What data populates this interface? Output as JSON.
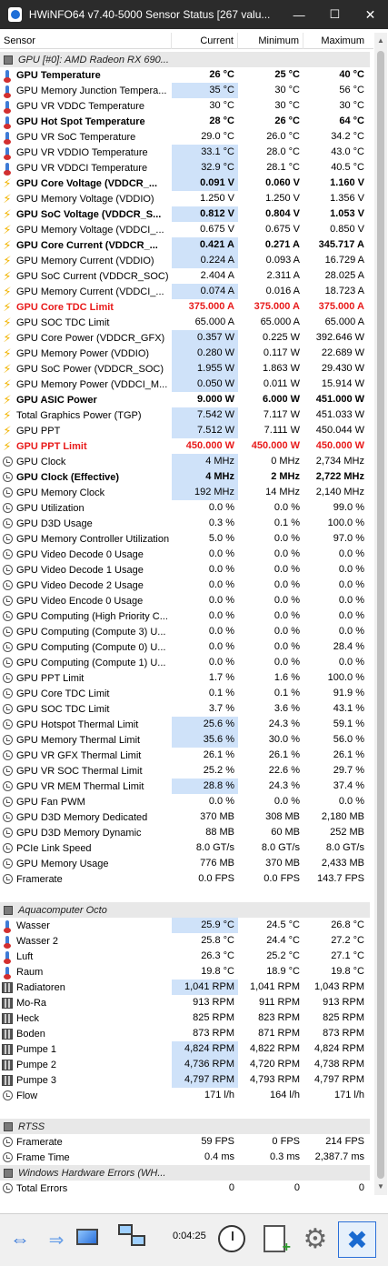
{
  "window": {
    "title": "HWiNFO64 v7.40-5000 Sensor Status [267 valu...",
    "minimize": "—",
    "maximize": "☐",
    "close": "✕"
  },
  "columns": {
    "sensor": "Sensor",
    "current": "Current",
    "minimum": "Minimum",
    "maximum": "Maximum"
  },
  "rows": [
    {
      "type": "group",
      "name": "GPU [#0]: AMD Radeon RX 690..."
    },
    {
      "icon": "therm",
      "name": "GPU Temperature",
      "cur": "26 °C",
      "min": "25 °C",
      "max": "40 °C",
      "style": "bold",
      "hl": false
    },
    {
      "icon": "therm",
      "name": "GPU Memory Junction Tempera...",
      "cur": "35 °C",
      "min": "30 °C",
      "max": "56 °C",
      "hl": true
    },
    {
      "icon": "therm",
      "name": "GPU VR VDDC Temperature",
      "cur": "30 °C",
      "min": "30 °C",
      "max": "30 °C"
    },
    {
      "icon": "therm",
      "name": "GPU Hot Spot Temperature",
      "cur": "28 °C",
      "min": "26 °C",
      "max": "64 °C",
      "style": "bold"
    },
    {
      "icon": "therm",
      "name": "GPU VR SoC Temperature",
      "cur": "29.0 °C",
      "min": "26.0 °C",
      "max": "34.2 °C"
    },
    {
      "icon": "therm",
      "name": "GPU VR VDDIO Temperature",
      "cur": "33.1 °C",
      "min": "28.0 °C",
      "max": "43.0 °C",
      "hl": true
    },
    {
      "icon": "therm",
      "name": "GPU VR VDDCI Temperature",
      "cur": "32.9 °C",
      "min": "28.1 °C",
      "max": "40.5 °C",
      "hl": true
    },
    {
      "icon": "bolt",
      "name": "GPU Core Voltage (VDDCR_...",
      "cur": "0.091 V",
      "min": "0.060 V",
      "max": "1.160 V",
      "style": "bold",
      "hl": true
    },
    {
      "icon": "bolt",
      "name": "GPU Memory Voltage (VDDIO)",
      "cur": "1.250 V",
      "min": "1.250 V",
      "max": "1.356 V"
    },
    {
      "icon": "bolt",
      "name": "GPU SoC Voltage (VDDCR_S...",
      "cur": "0.812 V",
      "min": "0.804 V",
      "max": "1.053 V",
      "style": "bold",
      "hl": true
    },
    {
      "icon": "bolt",
      "name": "GPU Memory Voltage (VDDCI_...",
      "cur": "0.675 V",
      "min": "0.675 V",
      "max": "0.850 V"
    },
    {
      "icon": "bolt",
      "name": "GPU Core Current (VDDCR_...",
      "cur": "0.421 A",
      "min": "0.271 A",
      "max": "345.717 A",
      "style": "bold",
      "hl": true
    },
    {
      "icon": "bolt",
      "name": "GPU Memory Current (VDDIO)",
      "cur": "0.224 A",
      "min": "0.093 A",
      "max": "16.729 A",
      "hl": true
    },
    {
      "icon": "bolt",
      "name": "GPU SoC Current (VDDCR_SOC)",
      "cur": "2.404 A",
      "min": "2.311 A",
      "max": "28.025 A"
    },
    {
      "icon": "bolt",
      "name": "GPU Memory Current (VDDCI_...",
      "cur": "0.074 A",
      "min": "0.016 A",
      "max": "18.723 A",
      "hl": true
    },
    {
      "icon": "bolt",
      "name": "GPU Core TDC Limit",
      "cur": "375.000 A",
      "min": "375.000 A",
      "max": "375.000 A",
      "style": "red"
    },
    {
      "icon": "bolt",
      "name": "GPU SOC TDC Limit",
      "cur": "65.000 A",
      "min": "65.000 A",
      "max": "65.000 A"
    },
    {
      "icon": "bolt",
      "name": "GPU Core Power (VDDCR_GFX)",
      "cur": "0.357 W",
      "min": "0.225 W",
      "max": "392.646 W",
      "hl": true
    },
    {
      "icon": "bolt",
      "name": "GPU Memory Power (VDDIO)",
      "cur": "0.280 W",
      "min": "0.117 W",
      "max": "22.689 W",
      "hl": true
    },
    {
      "icon": "bolt",
      "name": "GPU SoC Power (VDDCR_SOC)",
      "cur": "1.955 W",
      "min": "1.863 W",
      "max": "29.430 W",
      "hl": true
    },
    {
      "icon": "bolt",
      "name": "GPU Memory Power (VDDCI_M...",
      "cur": "0.050 W",
      "min": "0.011 W",
      "max": "15.914 W",
      "hl": true
    },
    {
      "icon": "bolt",
      "name": "GPU ASIC Power",
      "cur": "9.000 W",
      "min": "6.000 W",
      "max": "451.000 W",
      "style": "bold"
    },
    {
      "icon": "bolt",
      "name": "Total Graphics Power (TGP)",
      "cur": "7.542 W",
      "min": "7.117 W",
      "max": "451.033 W",
      "hl": true
    },
    {
      "icon": "bolt",
      "name": "GPU PPT",
      "cur": "7.512 W",
      "min": "7.111 W",
      "max": "450.044 W",
      "hl": true
    },
    {
      "icon": "bolt",
      "name": "GPU PPT Limit",
      "cur": "450.000 W",
      "min": "450.000 W",
      "max": "450.000 W",
      "style": "red"
    },
    {
      "icon": "clock",
      "name": "GPU Clock",
      "cur": "4 MHz",
      "min": "0 MHz",
      "max": "2,734 MHz",
      "hl": true
    },
    {
      "icon": "clock",
      "name": "GPU Clock (Effective)",
      "cur": "4 MHz",
      "min": "2 MHz",
      "max": "2,722 MHz",
      "style": "bold",
      "hl": true
    },
    {
      "icon": "clock",
      "name": "GPU Memory Clock",
      "cur": "192 MHz",
      "min": "14 MHz",
      "max": "2,140 MHz",
      "hl": true
    },
    {
      "icon": "clock",
      "name": "GPU Utilization",
      "cur": "0.0 %",
      "min": "0.0 %",
      "max": "99.0 %"
    },
    {
      "icon": "clock",
      "name": "GPU D3D Usage",
      "cur": "0.3 %",
      "min": "0.1 %",
      "max": "100.0 %"
    },
    {
      "icon": "clock",
      "name": "GPU Memory Controller Utilization",
      "cur": "5.0 %",
      "min": "0.0 %",
      "max": "97.0 %"
    },
    {
      "icon": "clock",
      "name": "GPU Video Decode 0 Usage",
      "cur": "0.0 %",
      "min": "0.0 %",
      "max": "0.0 %"
    },
    {
      "icon": "clock",
      "name": "GPU Video Decode 1 Usage",
      "cur": "0.0 %",
      "min": "0.0 %",
      "max": "0.0 %"
    },
    {
      "icon": "clock",
      "name": "GPU Video Decode 2 Usage",
      "cur": "0.0 %",
      "min": "0.0 %",
      "max": "0.0 %"
    },
    {
      "icon": "clock",
      "name": "GPU Video Encode 0 Usage",
      "cur": "0.0 %",
      "min": "0.0 %",
      "max": "0.0 %"
    },
    {
      "icon": "clock",
      "name": "GPU Computing (High Priority C...",
      "cur": "0.0 %",
      "min": "0.0 %",
      "max": "0.0 %"
    },
    {
      "icon": "clock",
      "name": "GPU Computing (Compute 3) U...",
      "cur": "0.0 %",
      "min": "0.0 %",
      "max": "0.0 %"
    },
    {
      "icon": "clock",
      "name": "GPU Computing (Compute 0) U...",
      "cur": "0.0 %",
      "min": "0.0 %",
      "max": "28.4 %"
    },
    {
      "icon": "clock",
      "name": "GPU Computing (Compute 1) U...",
      "cur": "0.0 %",
      "min": "0.0 %",
      "max": "0.0 %"
    },
    {
      "icon": "clock",
      "name": "GPU PPT Limit",
      "cur": "1.7 %",
      "min": "1.6 %",
      "max": "100.0 %"
    },
    {
      "icon": "clock",
      "name": "GPU Core TDC Limit",
      "cur": "0.1 %",
      "min": "0.1 %",
      "max": "91.9 %"
    },
    {
      "icon": "clock",
      "name": "GPU SOC TDC Limit",
      "cur": "3.7 %",
      "min": "3.6 %",
      "max": "43.1 %"
    },
    {
      "icon": "clock",
      "name": "GPU Hotspot Thermal Limit",
      "cur": "25.6 %",
      "min": "24.3 %",
      "max": "59.1 %",
      "hl": true
    },
    {
      "icon": "clock",
      "name": "GPU Memory Thermal Limit",
      "cur": "35.6 %",
      "min": "30.0 %",
      "max": "56.0 %",
      "hl": true
    },
    {
      "icon": "clock",
      "name": "GPU VR GFX Thermal Limit",
      "cur": "26.1 %",
      "min": "26.1 %",
      "max": "26.1 %"
    },
    {
      "icon": "clock",
      "name": "GPU VR SOC Thermal Limit",
      "cur": "25.2 %",
      "min": "22.6 %",
      "max": "29.7 %"
    },
    {
      "icon": "clock",
      "name": "GPU VR MEM Thermal Limit",
      "cur": "28.8 %",
      "min": "24.3 %",
      "max": "37.4 %",
      "hl": true
    },
    {
      "icon": "clock",
      "name": "GPU Fan PWM",
      "cur": "0.0 %",
      "min": "0.0 %",
      "max": "0.0 %"
    },
    {
      "icon": "clock",
      "name": "GPU D3D Memory Dedicated",
      "cur": "370 MB",
      "min": "308 MB",
      "max": "2,180 MB"
    },
    {
      "icon": "clock",
      "name": "GPU D3D Memory Dynamic",
      "cur": "88 MB",
      "min": "60 MB",
      "max": "252 MB"
    },
    {
      "icon": "clock",
      "name": "PCIe Link Speed",
      "cur": "8.0 GT/s",
      "min": "8.0 GT/s",
      "max": "8.0 GT/s"
    },
    {
      "icon": "clock",
      "name": "GPU Memory Usage",
      "cur": "776 MB",
      "min": "370 MB",
      "max": "2,433 MB"
    },
    {
      "icon": "clock",
      "name": "Framerate",
      "cur": "0.0 FPS",
      "min": "0.0 FPS",
      "max": "143.7 FPS"
    },
    {
      "type": "blank"
    },
    {
      "type": "group",
      "name": "Aquacomputer Octo"
    },
    {
      "icon": "therm",
      "name": "Wasser",
      "cur": "25.9 °C",
      "min": "24.5 °C",
      "max": "26.8 °C",
      "hl": true
    },
    {
      "icon": "therm",
      "name": "Wasser 2",
      "cur": "25.8 °C",
      "min": "24.4 °C",
      "max": "27.2 °C"
    },
    {
      "icon": "therm",
      "name": "Luft",
      "cur": "26.3 °C",
      "min": "25.2 °C",
      "max": "27.1 °C"
    },
    {
      "icon": "therm",
      "name": "Raum",
      "cur": "19.8 °C",
      "min": "18.9 °C",
      "max": "19.8 °C"
    },
    {
      "icon": "fan",
      "name": "Radiatoren",
      "cur": "1,041 RPM",
      "min": "1,041 RPM",
      "max": "1,043 RPM",
      "hl": true
    },
    {
      "icon": "fan",
      "name": "Mo-Ra",
      "cur": "913 RPM",
      "min": "911 RPM",
      "max": "913 RPM"
    },
    {
      "icon": "fan",
      "name": "Heck",
      "cur": "825 RPM",
      "min": "823 RPM",
      "max": "825 RPM"
    },
    {
      "icon": "fan",
      "name": "Boden",
      "cur": "873 RPM",
      "min": "871 RPM",
      "max": "873 RPM"
    },
    {
      "icon": "fan",
      "name": "Pumpe 1",
      "cur": "4,824 RPM",
      "min": "4,822 RPM",
      "max": "4,824 RPM",
      "hl": true
    },
    {
      "icon": "fan",
      "name": "Pumpe 2",
      "cur": "4,736 RPM",
      "min": "4,720 RPM",
      "max": "4,738 RPM",
      "hl": true
    },
    {
      "icon": "fan",
      "name": "Pumpe 3",
      "cur": "4,797 RPM",
      "min": "4,793 RPM",
      "max": "4,797 RPM",
      "hl": true
    },
    {
      "icon": "clock",
      "name": "Flow",
      "cur": "171 l/h",
      "min": "164 l/h",
      "max": "171 l/h"
    },
    {
      "type": "blank"
    },
    {
      "type": "group",
      "name": "RTSS"
    },
    {
      "icon": "clock",
      "name": "Framerate",
      "cur": "59 FPS",
      "min": "0 FPS",
      "max": "214 FPS"
    },
    {
      "icon": "clock",
      "name": "Frame Time",
      "cur": "0.4 ms",
      "min": "0.3 ms",
      "max": "2,387.7 ms"
    },
    {
      "type": "group",
      "name": "Windows Hardware Errors (WH..."
    },
    {
      "icon": "clock",
      "name": "Total Errors",
      "cur": "0",
      "min": "0",
      "max": "0"
    }
  ],
  "toolbar": {
    "elapsed_time": "0:04:25",
    "nav_back": "⇔",
    "nav_forward": "⇒",
    "settings_glyph": "⚙",
    "close_glyph": "✖"
  }
}
